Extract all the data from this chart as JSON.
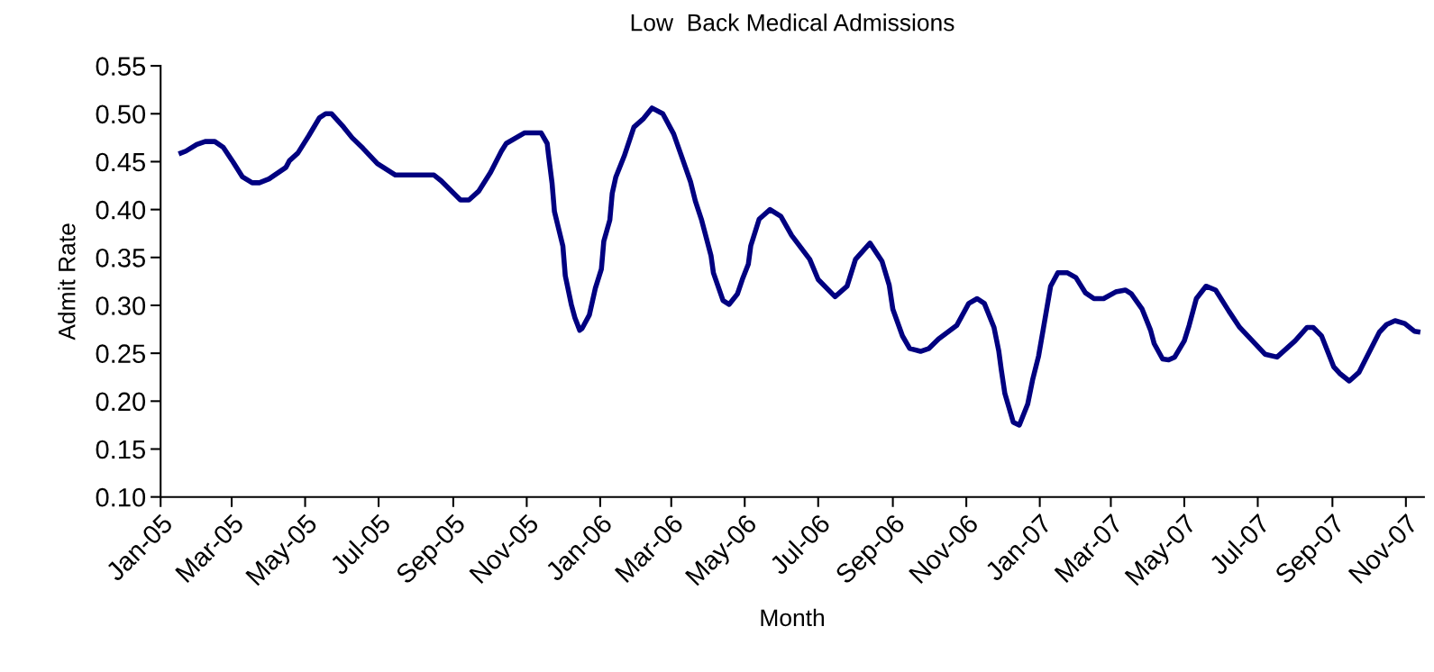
{
  "chart_data": {
    "type": "line",
    "title": "Low  Back Medical Admissions",
    "xlabel": "Month",
    "ylabel": "Admit Rate",
    "x": [
      "2005-01-16",
      "2005-01-22",
      "2005-01-31",
      "2005-02-07",
      "2005-02-15",
      "2005-02-22",
      "2005-03-02",
      "2005-03-10",
      "2005-03-18",
      "2005-03-24",
      "2005-04-01",
      "2005-04-15",
      "2005-04-18",
      "2005-04-25",
      "2005-05-04",
      "2005-05-13",
      "2005-05-18",
      "2005-05-23",
      "2005-06-02",
      "2005-06-09",
      "2005-06-18",
      "2005-06-30",
      "2005-07-15",
      "2005-08-16",
      "2005-08-22",
      "2005-09-07",
      "2005-09-14",
      "2005-09-22",
      "2005-10-02",
      "2005-10-11",
      "2005-10-15",
      "2005-10-30",
      "2005-11-13",
      "2005-11-18",
      "2005-11-19",
      "2005-11-22",
      "2005-11-24",
      "2005-12-01",
      "2005-12-03",
      "2005-12-08",
      "2005-12-11",
      "2005-12-15",
      "2005-12-17",
      "2005-12-23",
      "2005-12-28",
      "2006-01-02",
      "2006-01-04",
      "2006-01-09",
      "2006-01-11",
      "2006-01-14",
      "2006-01-21",
      "2006-01-29",
      "2006-02-06",
      "2006-02-13",
      "2006-02-22",
      "2006-03-03",
      "2006-03-10",
      "2006-03-17",
      "2006-03-21",
      "2006-03-26",
      "2006-04-03",
      "2006-04-05",
      "2006-04-13",
      "2006-04-18",
      "2006-04-25",
      "2006-04-29",
      "2006-05-04",
      "2006-05-06",
      "2006-05-13",
      "2006-05-22",
      "2006-05-31",
      "2006-06-09",
      "2006-06-24",
      "2006-07-01",
      "2006-07-15",
      "2006-07-25",
      "2006-08-01",
      "2006-08-13",
      "2006-08-23",
      "2006-08-29",
      "2006-09-01",
      "2006-09-09",
      "2006-09-15",
      "2006-09-24",
      "2006-10-01",
      "2006-10-09",
      "2006-10-24",
      "2006-11-03",
      "2006-11-10",
      "2006-11-16",
      "2006-11-24",
      "2006-11-28",
      "2006-11-30",
      "2006-12-03",
      "2006-12-10",
      "2006-12-15",
      "2006-12-22",
      "2006-12-26",
      "2006-12-31",
      "2007-01-04",
      "2007-01-10",
      "2007-01-16",
      "2007-01-24",
      "2007-01-31",
      "2007-02-08",
      "2007-02-15",
      "2007-02-23",
      "2007-03-05",
      "2007-03-13",
      "2007-03-18",
      "2007-03-27",
      "2007-04-03",
      "2007-04-06",
      "2007-04-13",
      "2007-04-18",
      "2007-04-23",
      "2007-05-01",
      "2007-05-05",
      "2007-05-11",
      "2007-05-19",
      "2007-05-27",
      "2007-06-07",
      "2007-06-16",
      "2007-07-07",
      "2007-07-17",
      "2007-08-01",
      "2007-08-11",
      "2007-08-16",
      "2007-08-23",
      "2007-09-02",
      "2007-09-07",
      "2007-09-15",
      "2007-09-23",
      "2007-10-10",
      "2007-10-16",
      "2007-10-23",
      "2007-10-31",
      "2007-11-08",
      "2007-11-13"
    ],
    "series": [
      {
        "color": "#000080",
        "values": [
          0.458,
          0.461,
          0.468,
          0.471,
          0.471,
          0.465,
          0.45,
          0.434,
          0.428,
          0.428,
          0.432,
          0.444,
          0.451,
          0.459,
          0.477,
          0.496,
          0.5,
          0.5,
          0.486,
          0.475,
          0.464,
          0.448,
          0.436,
          0.436,
          0.43,
          0.41,
          0.41,
          0.419,
          0.439,
          0.461,
          0.469,
          0.48,
          0.48,
          0.469,
          0.458,
          0.428,
          0.398,
          0.362,
          0.331,
          0.301,
          0.287,
          0.274,
          0.276,
          0.29,
          0.318,
          0.338,
          0.367,
          0.389,
          0.417,
          0.434,
          0.456,
          0.486,
          0.495,
          0.506,
          0.5,
          0.479,
          0.454,
          0.429,
          0.409,
          0.39,
          0.352,
          0.334,
          0.305,
          0.301,
          0.312,
          0.327,
          0.343,
          0.362,
          0.39,
          0.4,
          0.393,
          0.373,
          0.348,
          0.327,
          0.309,
          0.32,
          0.348,
          0.365,
          0.346,
          0.321,
          0.296,
          0.268,
          0.255,
          0.252,
          0.255,
          0.265,
          0.279,
          0.302,
          0.307,
          0.302,
          0.277,
          0.252,
          0.233,
          0.208,
          0.178,
          0.175,
          0.197,
          0.222,
          0.247,
          0.276,
          0.32,
          0.334,
          0.334,
          0.329,
          0.313,
          0.307,
          0.307,
          0.314,
          0.316,
          0.312,
          0.296,
          0.274,
          0.26,
          0.244,
          0.243,
          0.246,
          0.263,
          0.279,
          0.307,
          0.32,
          0.316,
          0.294,
          0.277,
          0.249,
          0.246,
          0.263,
          0.277,
          0.277,
          0.268,
          0.236,
          0.229,
          0.221,
          0.23,
          0.272,
          0.28,
          0.284,
          0.281,
          0.273,
          0.272
        ]
      }
    ],
    "xlim": [
      "2005-01-01",
      "2007-11-16"
    ],
    "xticks": [
      {
        "value": "2005-01-01",
        "label": "Jan-05"
      },
      {
        "value": "2005-03-01",
        "label": "Mar-05"
      },
      {
        "value": "2005-05-01",
        "label": "May-05"
      },
      {
        "value": "2005-07-01",
        "label": "Jul-05"
      },
      {
        "value": "2005-09-01",
        "label": "Sep-05"
      },
      {
        "value": "2005-11-01",
        "label": "Nov-05"
      },
      {
        "value": "2006-01-01",
        "label": "Jan-06"
      },
      {
        "value": "2006-03-01",
        "label": "Mar-06"
      },
      {
        "value": "2006-05-01",
        "label": "May-06"
      },
      {
        "value": "2006-07-01",
        "label": "Jul-06"
      },
      {
        "value": "2006-09-01",
        "label": "Sep-06"
      },
      {
        "value": "2006-11-01",
        "label": "Nov-06"
      },
      {
        "value": "2007-01-01",
        "label": "Jan-07"
      },
      {
        "value": "2007-03-01",
        "label": "Mar-07"
      },
      {
        "value": "2007-05-01",
        "label": "May-07"
      },
      {
        "value": "2007-07-01",
        "label": "Jul-07"
      },
      {
        "value": "2007-09-01",
        "label": "Sep-07"
      },
      {
        "value": "2007-11-01",
        "label": "Nov-07"
      }
    ],
    "ylim": [
      0.1,
      0.55
    ],
    "yticks": [
      {
        "value": 0.1,
        "label": "0.10"
      },
      0.15,
      {
        "value": 0.2,
        "label": "0.20"
      },
      0.25,
      {
        "value": 0.3,
        "label": "0.30"
      },
      0.35,
      {
        "value": 0.4,
        "label": "0.40"
      },
      0.45,
      {
        "value": 0.5,
        "label": "0.50"
      },
      0.55
    ],
    "line_style": "solid"
  }
}
